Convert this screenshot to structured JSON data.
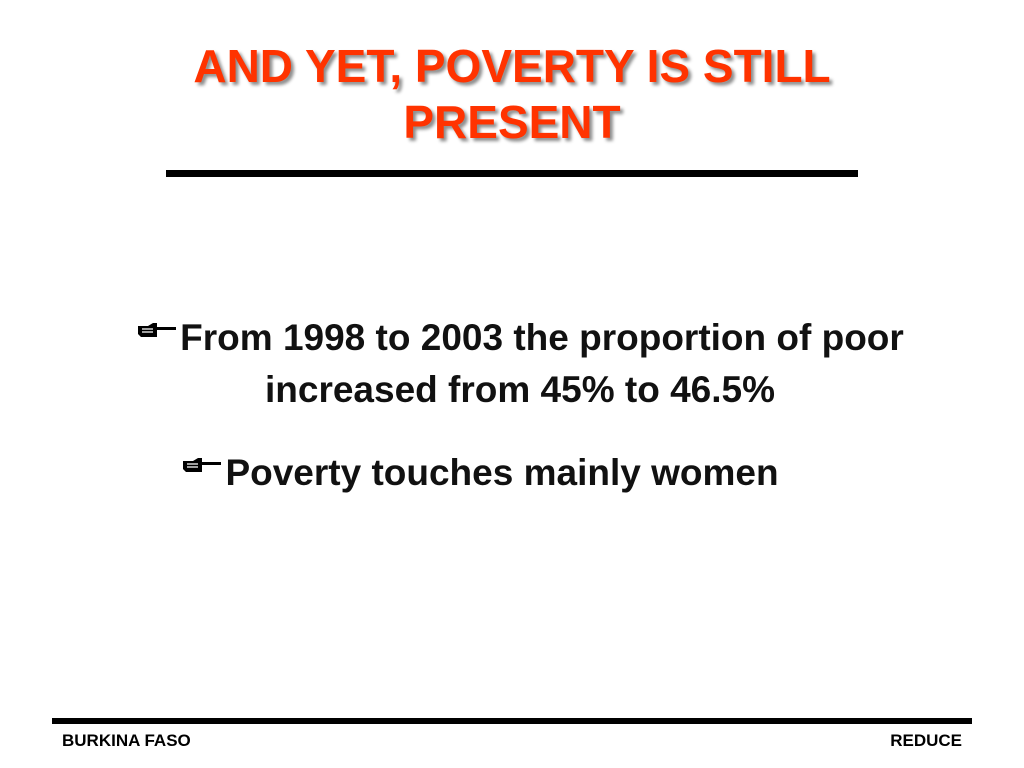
{
  "title": {
    "line1": "AND YET, POVERTY IS STILL",
    "line2": "PRESENT"
  },
  "bullets": [
    {
      "icon": "pointing-hand-icon",
      "line1": "From 1998 to 2003 the proportion of poor",
      "line2": "increased from 45% to 46.5%"
    },
    {
      "icon": "pointing-hand-icon",
      "line1": "Poverty touches mainly women"
    }
  ],
  "footer": {
    "left": "BURKINA FASO",
    "right": "REDUCE"
  },
  "colors": {
    "title": "#ff3300",
    "text": "#111111",
    "rules": "#000000",
    "background": "#ffffff"
  }
}
